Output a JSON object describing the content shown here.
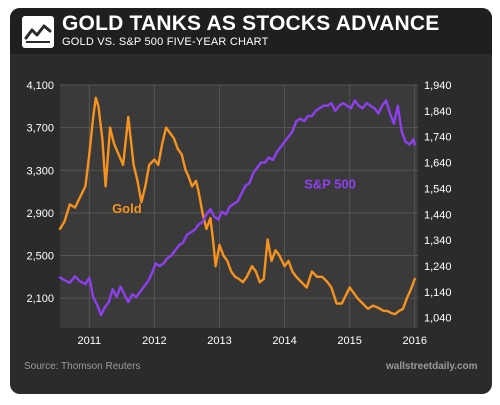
{
  "header": {
    "title": "GOLD TANKS AS STOCKS ADVANCE",
    "subtitle": "GOLD VS. S&P 500 FIVE-YEAR CHART",
    "icon": "line-chart-icon"
  },
  "footer": {
    "source": "Source: Thomson Reuters",
    "site": "wallstreetdaily.com"
  },
  "colors": {
    "gold": "#f7931e",
    "sp500": "#8e3ff0",
    "background": "#2b2b2b",
    "plot": "#3a3a3a",
    "grid": "#555555",
    "text": "#ffffff",
    "muted": "#9a9a9a"
  },
  "chart_data": {
    "type": "line",
    "title": "GOLD TANKS AS STOCKS ADVANCE",
    "subtitle": "GOLD VS. S&P 500 FIVE-YEAR CHART",
    "x_ticks": [
      "2011",
      "2012",
      "2013",
      "2014",
      "2015",
      "2016"
    ],
    "x_tick_values": [
      2011,
      2012,
      2013,
      2014,
      2015,
      2016
    ],
    "xlim": [
      2010.55,
      2016.05
    ],
    "y_left": {
      "ticks": [
        "4,100",
        "3,700",
        "3,300",
        "2,900",
        "2,500",
        "2,100"
      ],
      "tick_values": [
        4100,
        3700,
        3300,
        2900,
        2500,
        2100
      ],
      "ylim": [
        1820,
        4100
      ]
    },
    "y_right": {
      "ticks": [
        "1,940",
        "1,840",
        "1,740",
        "1,640",
        "1,540",
        "1,440",
        "1,340",
        "1,240",
        "1,140",
        "1,040"
      ],
      "tick_values": [
        1940,
        1840,
        1740,
        1640,
        1540,
        1440,
        1340,
        1240,
        1140,
        1040
      ],
      "ylim": [
        1000,
        1940
      ]
    },
    "grid": true,
    "series": [
      {
        "name": "Gold",
        "axis": "left",
        "label_position": [
          2011.35,
          2900
        ],
        "x": [
          2010.55,
          2010.62,
          2010.7,
          2010.78,
          2010.86,
          2010.94,
          2011.0,
          2011.06,
          2011.1,
          2011.14,
          2011.2,
          2011.25,
          2011.32,
          2011.38,
          2011.45,
          2011.52,
          2011.6,
          2011.68,
          2011.74,
          2011.8,
          2011.86,
          2011.92,
          2012.0,
          2012.06,
          2012.12,
          2012.18,
          2012.24,
          2012.3,
          2012.36,
          2012.42,
          2012.48,
          2012.52,
          2012.58,
          2012.64,
          2012.68,
          2012.74,
          2012.8,
          2012.86,
          2012.9,
          2012.94,
          2013.0,
          2013.06,
          2013.12,
          2013.18,
          2013.24,
          2013.3,
          2013.36,
          2013.42,
          2013.5,
          2013.56,
          2013.62,
          2013.68,
          2013.74,
          2013.8,
          2013.86,
          2013.92,
          2014.0,
          2014.06,
          2014.12,
          2014.18,
          2014.26,
          2014.34,
          2014.42,
          2014.5,
          2014.58,
          2014.66,
          2014.72,
          2014.8,
          2014.88,
          2014.96,
          2015.0,
          2015.06,
          2015.12,
          2015.2,
          2015.28,
          2015.36,
          2015.44,
          2015.52,
          2015.58,
          2015.64,
          2015.7,
          2015.76,
          2015.82,
          2015.88,
          2015.94,
          2016.0
        ],
        "values": [
          2750,
          2820,
          2980,
          2950,
          3050,
          3150,
          3450,
          3800,
          3980,
          3900,
          3600,
          3150,
          3700,
          3550,
          3450,
          3350,
          3800,
          3350,
          3200,
          3000,
          3150,
          3350,
          3400,
          3350,
          3550,
          3700,
          3650,
          3600,
          3500,
          3450,
          3300,
          3250,
          3150,
          3200,
          3100,
          2900,
          2750,
          2850,
          2650,
          2400,
          2600,
          2500,
          2450,
          2350,
          2300,
          2280,
          2250,
          2300,
          2400,
          2350,
          2250,
          2280,
          2650,
          2450,
          2550,
          2500,
          2400,
          2450,
          2350,
          2300,
          2250,
          2200,
          2350,
          2300,
          2300,
          2250,
          2200,
          2050,
          2050,
          2150,
          2200,
          2150,
          2100,
          2050,
          2000,
          2030,
          2010,
          1980,
          1980,
          1960,
          1950,
          1980,
          2000,
          2100,
          2180,
          2280
        ]
      },
      {
        "name": "S&P 500",
        "axis": "right",
        "label_position": [
          2014.3,
          1540
        ],
        "x": [
          2010.55,
          2010.62,
          2010.7,
          2010.78,
          2010.86,
          2010.94,
          2011.0,
          2011.06,
          2011.12,
          2011.18,
          2011.24,
          2011.3,
          2011.36,
          2011.42,
          2011.48,
          2011.54,
          2011.6,
          2011.66,
          2011.72,
          2011.78,
          2011.84,
          2011.9,
          2011.96,
          2012.02,
          2012.08,
          2012.14,
          2012.2,
          2012.26,
          2012.32,
          2012.38,
          2012.44,
          2012.5,
          2012.56,
          2012.62,
          2012.68,
          2012.74,
          2012.8,
          2012.86,
          2012.92,
          2012.98,
          2013.04,
          2013.1,
          2013.16,
          2013.22,
          2013.28,
          2013.34,
          2013.4,
          2013.46,
          2013.52,
          2013.58,
          2013.64,
          2013.7,
          2013.76,
          2013.82,
          2013.88,
          2013.94,
          2014.0,
          2014.06,
          2014.12,
          2014.18,
          2014.24,
          2014.3,
          2014.36,
          2014.42,
          2014.48,
          2014.54,
          2014.6,
          2014.66,
          2014.72,
          2014.78,
          2014.84,
          2014.9,
          2014.96,
          2015.02,
          2015.08,
          2015.14,
          2015.2,
          2015.26,
          2015.32,
          2015.38,
          2015.44,
          2015.5,
          2015.56,
          2015.62,
          2015.68,
          2015.74,
          2015.8,
          2015.86,
          2015.92,
          2015.98,
          2016.0
        ],
        "values": [
          1195,
          1185,
          1175,
          1200,
          1180,
          1170,
          1195,
          1120,
          1090,
          1050,
          1080,
          1100,
          1150,
          1120,
          1160,
          1130,
          1100,
          1130,
          1120,
          1140,
          1160,
          1180,
          1210,
          1250,
          1240,
          1250,
          1270,
          1280,
          1300,
          1320,
          1330,
          1360,
          1370,
          1380,
          1400,
          1410,
          1440,
          1460,
          1430,
          1420,
          1450,
          1440,
          1470,
          1480,
          1490,
          1520,
          1550,
          1560,
          1600,
          1620,
          1640,
          1640,
          1660,
          1650,
          1680,
          1700,
          1720,
          1740,
          1760,
          1800,
          1810,
          1800,
          1820,
          1820,
          1840,
          1850,
          1860,
          1860,
          1870,
          1840,
          1860,
          1870,
          1860,
          1850,
          1880,
          1860,
          1850,
          1870,
          1860,
          1850,
          1830,
          1860,
          1880,
          1830,
          1790,
          1860,
          1760,
          1720,
          1710,
          1730,
          1710
        ]
      }
    ]
  }
}
